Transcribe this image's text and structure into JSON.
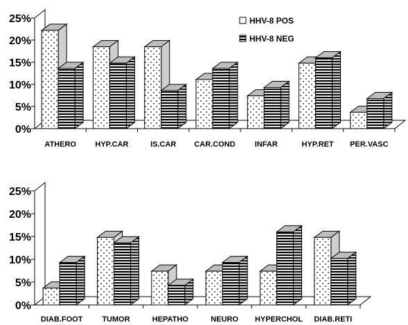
{
  "chart_data": [
    {
      "type": "bar",
      "categories": [
        "ATHERO",
        "HYP.CAR",
        "IS.CAR",
        "CAR.COND",
        "INFAR",
        "HYP.RET",
        "PER.VASC"
      ],
      "series": [
        {
          "name": "HHV-8 POS",
          "values": [
            22.2,
            18.5,
            18.5,
            11.1,
            7.4,
            14.8,
            3.7
          ]
        },
        {
          "name": "HHV-8 NEG",
          "values": [
            13.6,
            14.8,
            8.6,
            13.6,
            9.3,
            16.0,
            6.8
          ]
        }
      ],
      "y_ticks": [
        "0%",
        "5%",
        "10%",
        "15%",
        "20%",
        "25%"
      ],
      "ylim": [
        0,
        25
      ],
      "legend": "top-right",
      "grid": false
    },
    {
      "type": "bar",
      "categories": [
        "DIAB.FOOT",
        "TUMOR",
        "HEPATHO",
        "NEURO",
        "HYPERCHOL",
        "DIAB.RETI"
      ],
      "series": [
        {
          "name": "HHV-8 POS",
          "values": [
            3.7,
            14.8,
            7.4,
            7.4,
            7.4,
            14.8
          ]
        },
        {
          "name": "HHV-8 NEG",
          "values": [
            9.3,
            13.6,
            4.3,
            9.3,
            16.0,
            10.2
          ]
        }
      ],
      "y_ticks": [
        "0%",
        "5%",
        "10%",
        "15%",
        "20%",
        "25%"
      ],
      "ylim": [
        0,
        25
      ],
      "grid": false
    }
  ],
  "legend": {
    "pos_label": "HHV-8 POS",
    "neg_label": "HHV-8 NEG"
  }
}
